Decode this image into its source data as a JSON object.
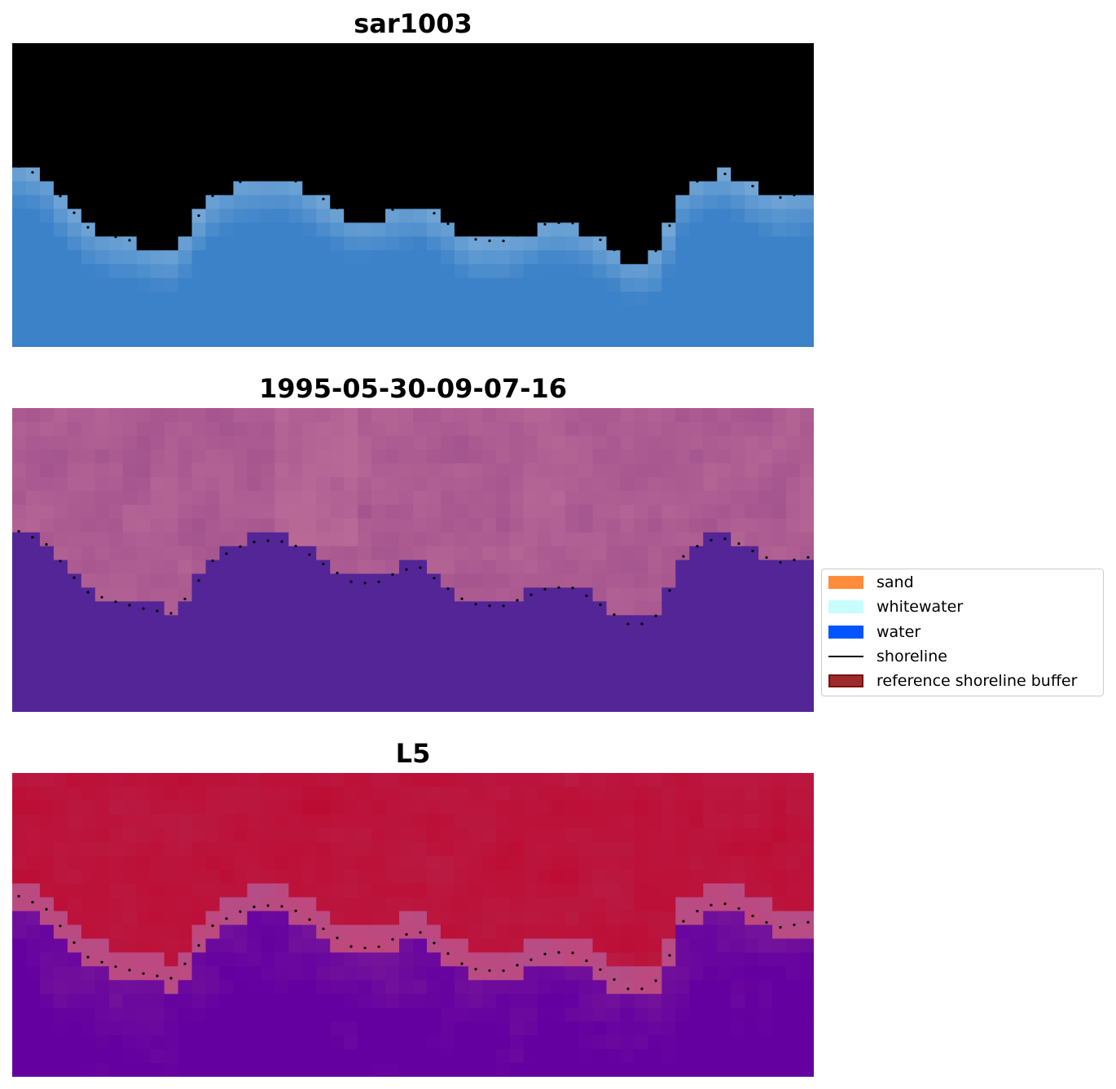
{
  "panels": [
    {
      "title": "sar1003",
      "palette": "sar"
    },
    {
      "title": "1995-05-30-09-07-16",
      "palette": "classified"
    },
    {
      "title": "L5",
      "palette": "index"
    }
  ],
  "legend": {
    "items": [
      {
        "label": "sand",
        "kind": "patch",
        "color": "#ff8c3a"
      },
      {
        "label": "whitewater",
        "kind": "patch",
        "color": "#c8fdfd"
      },
      {
        "label": "water",
        "kind": "patch",
        "color": "#0055ff"
      },
      {
        "label": "shoreline",
        "kind": "line",
        "color": "#000000"
      },
      {
        "label": "reference shoreline buffer",
        "kind": "patch",
        "color": "#9e2b2b"
      }
    ]
  },
  "colors": {
    "shoreline_dots": "#000000",
    "classified_water": "#532596",
    "classified_land": "#a35790"
  }
}
